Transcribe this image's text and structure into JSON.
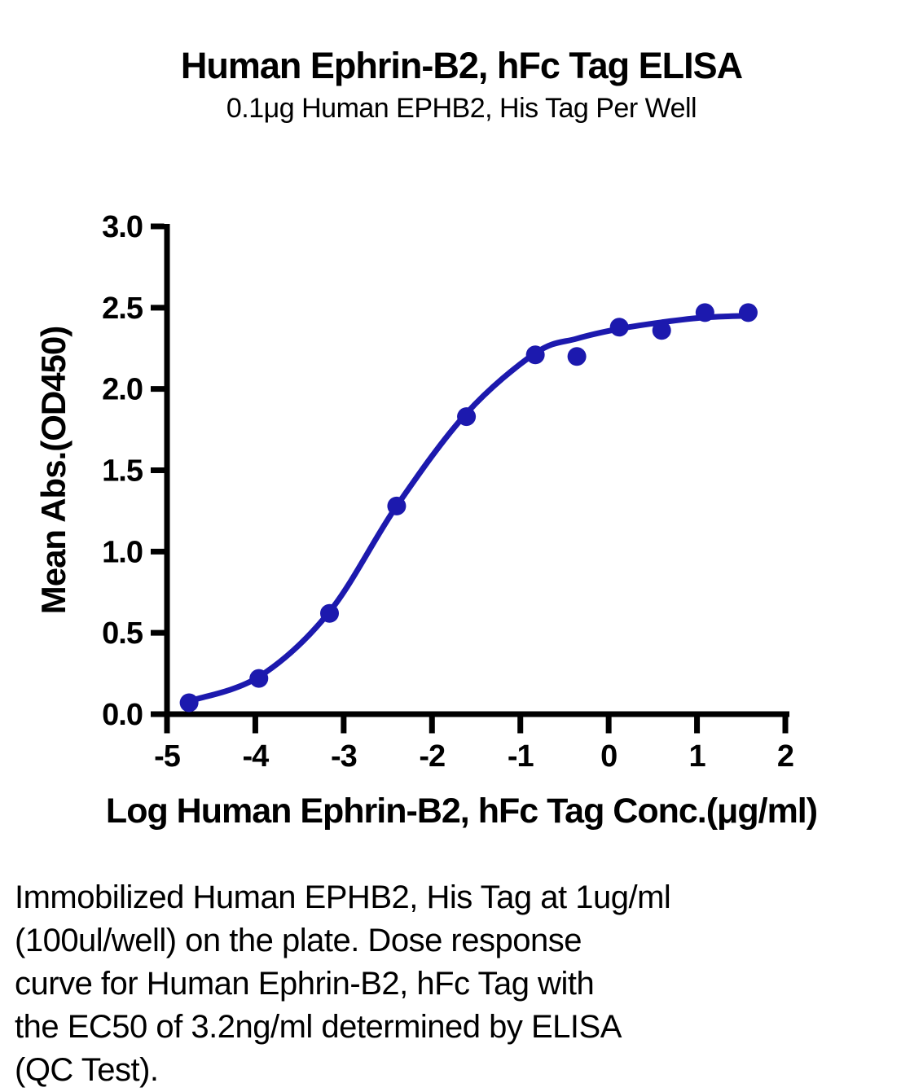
{
  "figure": {
    "title": "Human Ephrin-B2, hFc Tag ELISA",
    "subtitle": "0.1μg Human EPHB2, His Tag Per Well"
  },
  "chart_data": {
    "type": "scatter",
    "title": "Human Ephrin-B2, hFc Tag ELISA",
    "subtitle": "0.1μg Human EPHB2, His Tag Per Well",
    "xlabel": "Log Human Ephrin-B2, hFc Tag Conc.(μg/ml)",
    "ylabel": "Mean Abs.(OD450)",
    "xlim": [
      -5,
      2
    ],
    "ylim": [
      0,
      3
    ],
    "grid": false,
    "legend": "none",
    "x_tick_labels": [
      "-5",
      "-4",
      "-3",
      "-2",
      "-1",
      "0",
      "1",
      "2"
    ],
    "y_tick_labels": [
      "0.0",
      "0.5",
      "1.0",
      "1.5",
      "2.0",
      "2.5",
      "3.0"
    ],
    "series": [
      {
        "name": "Human Ephrin-B2, hFc Tag",
        "marker": "circle",
        "color": "#1c19ae",
        "points": [
          [
            -4.75,
            0.07
          ],
          [
            -3.96,
            0.22
          ],
          [
            -3.16,
            0.62
          ],
          [
            -2.4,
            1.28
          ],
          [
            -1.61,
            1.83
          ],
          [
            -0.83,
            2.21
          ],
          [
            -0.36,
            2.2
          ],
          [
            0.12,
            2.38
          ],
          [
            0.6,
            2.36
          ],
          [
            1.09,
            2.47
          ],
          [
            1.58,
            2.47
          ]
        ]
      }
    ],
    "fit_curve": {
      "name": "4PL dose-response fit",
      "color": "#1c19ae",
      "points": [
        [
          -4.75,
          0.08
        ],
        [
          -3.96,
          0.23
        ],
        [
          -3.16,
          0.63
        ],
        [
          -2.4,
          1.28
        ],
        [
          -1.61,
          1.85
        ],
        [
          -0.83,
          2.22
        ],
        [
          -0.36,
          2.31
        ],
        [
          0.12,
          2.37
        ],
        [
          0.6,
          2.41
        ],
        [
          1.09,
          2.44
        ],
        [
          1.58,
          2.45
        ]
      ]
    },
    "axis_color": "#000000"
  },
  "caption": {
    "lines": [
      "Immobilized Human EPHB2, His Tag at 1ug/ml",
      "(100ul/well) on the plate. Dose response",
      "curve for Human Ephrin-B2, hFc Tag with",
      "the EC50 of 3.2ng/ml determined by ELISA",
      "(QC Test)."
    ]
  }
}
